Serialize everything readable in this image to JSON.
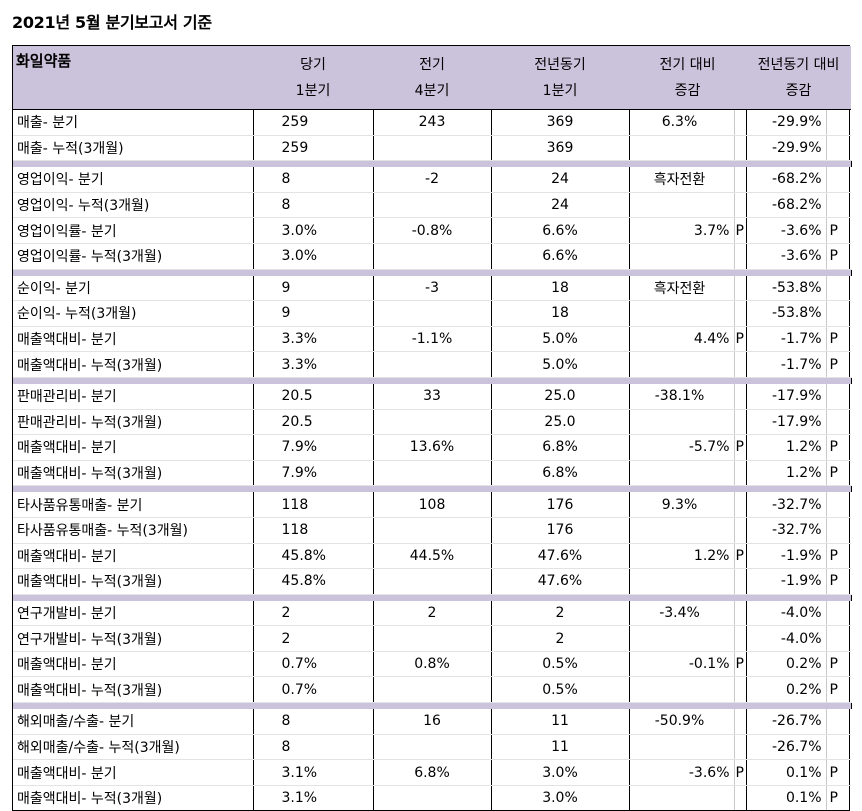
{
  "title": "2021년 5월 분기보고서 기준",
  "header": {
    "company": "화일약품",
    "cur_q": [
      "당기",
      "1분기"
    ],
    "prev_q": [
      "전기",
      "4분기"
    ],
    "yoy_q": [
      "전년동기",
      "1분기"
    ],
    "qoq": [
      "전기 대비",
      "증감"
    ],
    "yoy": [
      "전년동기 대비",
      "증감"
    ]
  },
  "groups": [
    {
      "rows": [
        {
          "name": "매출- 분기",
          "cur": "259",
          "prev": "243",
          "yoy_q": "369",
          "qoq": "6.3%",
          "qoq_p": "",
          "yoy": "-29.9%",
          "yoy_p": ""
        },
        {
          "name": "매출- 누적(3개월)",
          "cur": "259",
          "prev": "",
          "yoy_q": "369",
          "qoq": "",
          "qoq_p": "",
          "yoy": "-29.9%",
          "yoy_p": ""
        }
      ]
    },
    {
      "rows": [
        {
          "name": "영업이익- 분기",
          "cur": "8",
          "prev": "-2",
          "yoy_q": "24",
          "qoq": "흑자전환",
          "qoq_p": "",
          "yoy": "-68.2%",
          "yoy_p": ""
        },
        {
          "name": "영업이익- 누적(3개월)",
          "cur": "8",
          "prev": "",
          "yoy_q": "24",
          "qoq": "",
          "qoq_p": "",
          "yoy": "-68.2%",
          "yoy_p": ""
        },
        {
          "name": "영업이익률- 분기",
          "cur": "3.0%",
          "prev": "-0.8%",
          "yoy_q": "6.6%",
          "qoq": "3.7%",
          "qoq_p": "P",
          "yoy": "-3.6%",
          "yoy_p": "P"
        },
        {
          "name": "영업이익률- 누적(3개월)",
          "cur": "3.0%",
          "prev": "",
          "yoy_q": "6.6%",
          "qoq": "",
          "qoq_p": "",
          "yoy": "-3.6%",
          "yoy_p": "P"
        }
      ]
    },
    {
      "rows": [
        {
          "name": "순이익- 분기",
          "cur": "9",
          "prev": "-3",
          "yoy_q": "18",
          "qoq": "흑자전환",
          "qoq_p": "",
          "yoy": "-53.8%",
          "yoy_p": ""
        },
        {
          "name": "순이익- 누적(3개월)",
          "cur": "9",
          "prev": "",
          "yoy_q": "18",
          "qoq": "",
          "qoq_p": "",
          "yoy": "-53.8%",
          "yoy_p": ""
        },
        {
          "name": "매출액대비- 분기",
          "cur": "3.3%",
          "prev": "-1.1%",
          "yoy_q": "5.0%",
          "qoq": "4.4%",
          "qoq_p": "P",
          "yoy": "-1.7%",
          "yoy_p": "P"
        },
        {
          "name": "매출액대비- 누적(3개월)",
          "cur": "3.3%",
          "prev": "",
          "yoy_q": "5.0%",
          "qoq": "",
          "qoq_p": "",
          "yoy": "-1.7%",
          "yoy_p": "P"
        }
      ]
    },
    {
      "rows": [
        {
          "name": "판매관리비- 분기",
          "cur": "20.5",
          "prev": "33",
          "yoy_q": "25.0",
          "qoq": "-38.1%",
          "qoq_p": "",
          "yoy": "-17.9%",
          "yoy_p": ""
        },
        {
          "name": "판매관리비- 누적(3개월)",
          "cur": "20.5",
          "prev": "",
          "yoy_q": "25.0",
          "qoq": "",
          "qoq_p": "",
          "yoy": "-17.9%",
          "yoy_p": ""
        },
        {
          "name": "매출액대비- 분기",
          "cur": "7.9%",
          "prev": "13.6%",
          "yoy_q": "6.8%",
          "qoq": "-5.7%",
          "qoq_p": "P",
          "yoy": "1.2%",
          "yoy_p": "P"
        },
        {
          "name": "매출액대비- 누적(3개월)",
          "cur": "7.9%",
          "prev": "",
          "yoy_q": "6.8%",
          "qoq": "",
          "qoq_p": "",
          "yoy": "1.2%",
          "yoy_p": "P"
        }
      ]
    },
    {
      "rows": [
        {
          "name": "타사품유통매출- 분기",
          "cur": "118",
          "prev": "108",
          "yoy_q": "176",
          "qoq": "9.3%",
          "qoq_p": "",
          "yoy": "-32.7%",
          "yoy_p": ""
        },
        {
          "name": "타사품유통매출- 누적(3개월)",
          "cur": "118",
          "prev": "",
          "yoy_q": "176",
          "qoq": "",
          "qoq_p": "",
          "yoy": "-32.7%",
          "yoy_p": ""
        },
        {
          "name": "매출액대비- 분기",
          "cur": "45.8%",
          "prev": "44.5%",
          "yoy_q": "47.6%",
          "qoq": "1.2%",
          "qoq_p": "P",
          "yoy": "-1.9%",
          "yoy_p": "P"
        },
        {
          "name": "매출액대비- 누적(3개월)",
          "cur": "45.8%",
          "prev": "",
          "yoy_q": "47.6%",
          "qoq": "",
          "qoq_p": "",
          "yoy": "-1.9%",
          "yoy_p": "P"
        }
      ]
    },
    {
      "rows": [
        {
          "name": "연구개발비- 분기",
          "cur": "2",
          "prev": "2",
          "yoy_q": "2",
          "qoq": "-3.4%",
          "qoq_p": "",
          "yoy": "-4.0%",
          "yoy_p": ""
        },
        {
          "name": "연구개발비- 누적(3개월)",
          "cur": "2",
          "prev": "",
          "yoy_q": "2",
          "qoq": "",
          "qoq_p": "",
          "yoy": "-4.0%",
          "yoy_p": ""
        },
        {
          "name": "매출액대비- 분기",
          "cur": "0.7%",
          "prev": "0.8%",
          "yoy_q": "0.5%",
          "qoq": "-0.1%",
          "qoq_p": "P",
          "yoy": "0.2%",
          "yoy_p": "P"
        },
        {
          "name": "매출액대비- 누적(3개월)",
          "cur": "0.7%",
          "prev": "",
          "yoy_q": "0.5%",
          "qoq": "",
          "qoq_p": "",
          "yoy": "0.2%",
          "yoy_p": "P"
        }
      ]
    },
    {
      "rows": [
        {
          "name": "해외매출/수출- 분기",
          "cur": "8",
          "prev": "16",
          "yoy_q": "11",
          "qoq": "-50.9%",
          "qoq_p": "",
          "yoy": "-26.7%",
          "yoy_p": ""
        },
        {
          "name": "해외매출/수출- 누적(3개월)",
          "cur": "8",
          "prev": "",
          "yoy_q": "11",
          "qoq": "",
          "qoq_p": "",
          "yoy": "-26.7%",
          "yoy_p": ""
        },
        {
          "name": "매출액대비- 분기",
          "cur": "3.1%",
          "prev": "6.8%",
          "yoy_q": "3.0%",
          "qoq": "-3.6%",
          "qoq_p": "P",
          "yoy": "0.1%",
          "yoy_p": "P"
        },
        {
          "name": "매출액대비- 누적(3개월)",
          "cur": "3.1%",
          "prev": "",
          "yoy_q": "3.0%",
          "qoq": "",
          "qoq_p": "",
          "yoy": "0.1%",
          "yoy_p": "P"
        }
      ]
    }
  ]
}
